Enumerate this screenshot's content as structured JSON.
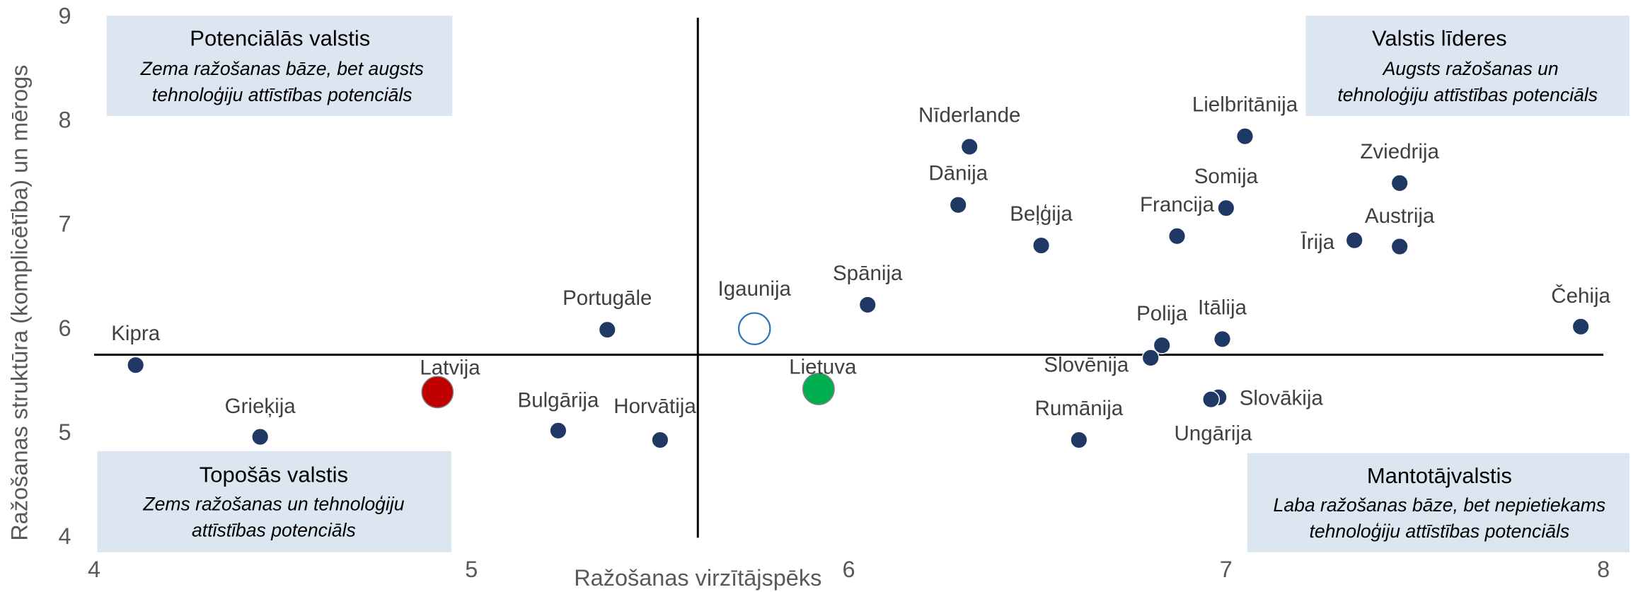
{
  "chart_data": {
    "type": "scatter",
    "xlabel": "Ražošanas virzītājspēks",
    "ylabel": "Ražošanas struktūra (komplicētība) un mērogs",
    "xlim": [
      4,
      8
    ],
    "ylim": [
      4,
      9
    ],
    "xticks": [
      4,
      5,
      6,
      7,
      8
    ],
    "yticks": [
      4,
      5,
      6,
      7,
      8,
      9
    ],
    "grid": false,
    "color": "#1f3864",
    "crosshair": {
      "x": 5.6,
      "y": 5.76
    },
    "labels": [
      "Kipra",
      "Grieķija",
      "Latvija",
      "Portugāle",
      "Bulgārija",
      "Horvātija",
      "Igaunija",
      "Lietuva",
      "Spānija",
      "Nīderlande",
      "Dānija",
      "Beļģija",
      "Rumānija",
      "Francija",
      "Somija",
      "Lielbritānija",
      "Polija",
      "Slovēnija",
      "Itālija",
      "Slovākija",
      "Ungārija",
      "Zviedrija",
      "Austrija",
      "Īrija",
      "Čehija"
    ],
    "x": [
      4.11,
      4.44,
      4.91,
      5.36,
      5.23,
      5.5,
      5.75,
      5.92,
      6.05,
      6.32,
      6.29,
      6.51,
      6.61,
      6.87,
      7.0,
      7.05,
      6.83,
      6.8,
      6.99,
      6.98,
      6.96,
      7.46,
      7.46,
      7.34,
      7.94
    ],
    "values": [
      5.66,
      4.97,
      5.4,
      6.0,
      5.03,
      4.94,
      6.01,
      5.43,
      6.24,
      7.76,
      7.2,
      6.81,
      4.94,
      6.9,
      7.17,
      7.86,
      5.85,
      5.73,
      5.91,
      5.35,
      5.33,
      7.41,
      6.8,
      6.86,
      6.03
    ],
    "marker_colors": [
      "#1f3864",
      "#1f3864",
      "#c00000",
      "#1f3864",
      "#1f3864",
      "#1f3864",
      "none",
      "#00b050",
      "#1f3864",
      "#1f3864",
      "#1f3864",
      "#1f3864",
      "#1f3864",
      "#1f3864",
      "#1f3864",
      "#1f3864",
      "#1f3864",
      "#1f3864",
      "#1f3864",
      "#1f3864",
      "#1f3864",
      "#1f3864",
      "#1f3864",
      "#1f3864",
      "#1f3864"
    ],
    "quadrants": [
      {
        "title": "Potenciālās valstis",
        "text": [
          "Zema ražošanas bāze, bet augsts",
          "tehnoloģiju attīstības potenciāls"
        ]
      },
      {
        "title": "Valstis līderes",
        "text": [
          "Augsts ražošanas un",
          "tehnoloģiju attīstības potenciāls"
        ]
      },
      {
        "title": "Topošās valstis",
        "text": [
          "Zems ražošanas un tehnoloģiju",
          "attīstības potenciāls"
        ]
      },
      {
        "title": "Mantotājvalstis",
        "text": [
          "Laba ražošanas bāze, bet nepietiekams",
          "tehnoloģiju attīstības potenciāls"
        ]
      }
    ]
  }
}
